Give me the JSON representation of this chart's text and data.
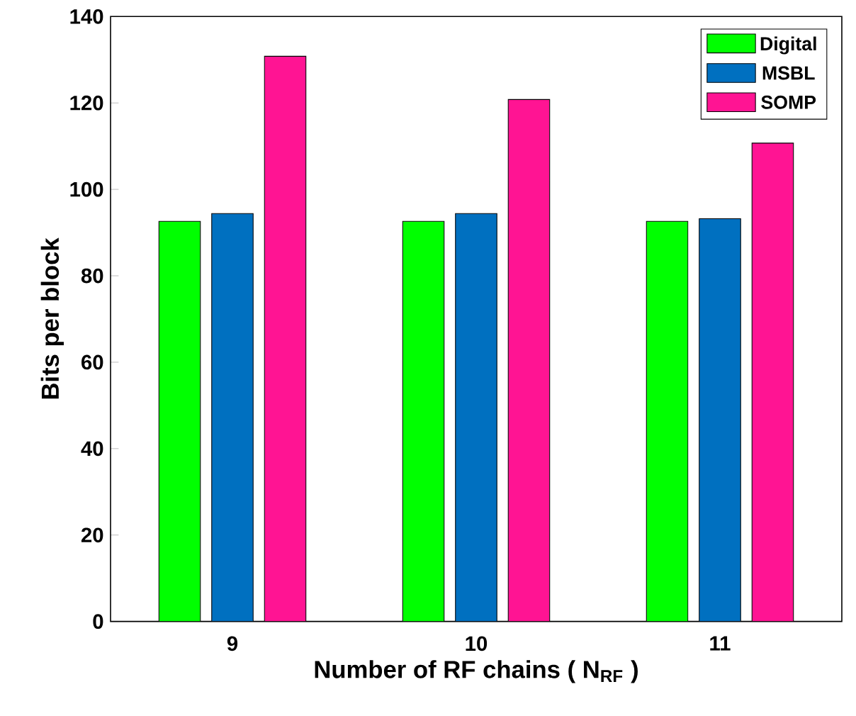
{
  "chart_data": {
    "type": "bar",
    "xlabel": "Number of RF chains ( N$_{RF}$ )",
    "ylabel": "Bits per block",
    "categories": [
      "9",
      "10",
      "11"
    ],
    "series": [
      {
        "name": "Digital",
        "color": "#00ff00",
        "values": [
          92.6,
          92.6,
          92.6
        ]
      },
      {
        "name": "MSBL",
        "color": "#0070c0",
        "values": [
          94.4,
          94.4,
          93.2
        ]
      },
      {
        "name": "SOMP",
        "color": "#ff1493",
        "values": [
          130.8,
          120.8,
          110.7
        ]
      }
    ],
    "ylim": [
      0,
      140
    ],
    "yticks": [
      0,
      20,
      40,
      60,
      80,
      100,
      120,
      140
    ],
    "grid": false,
    "legend": "top right"
  }
}
